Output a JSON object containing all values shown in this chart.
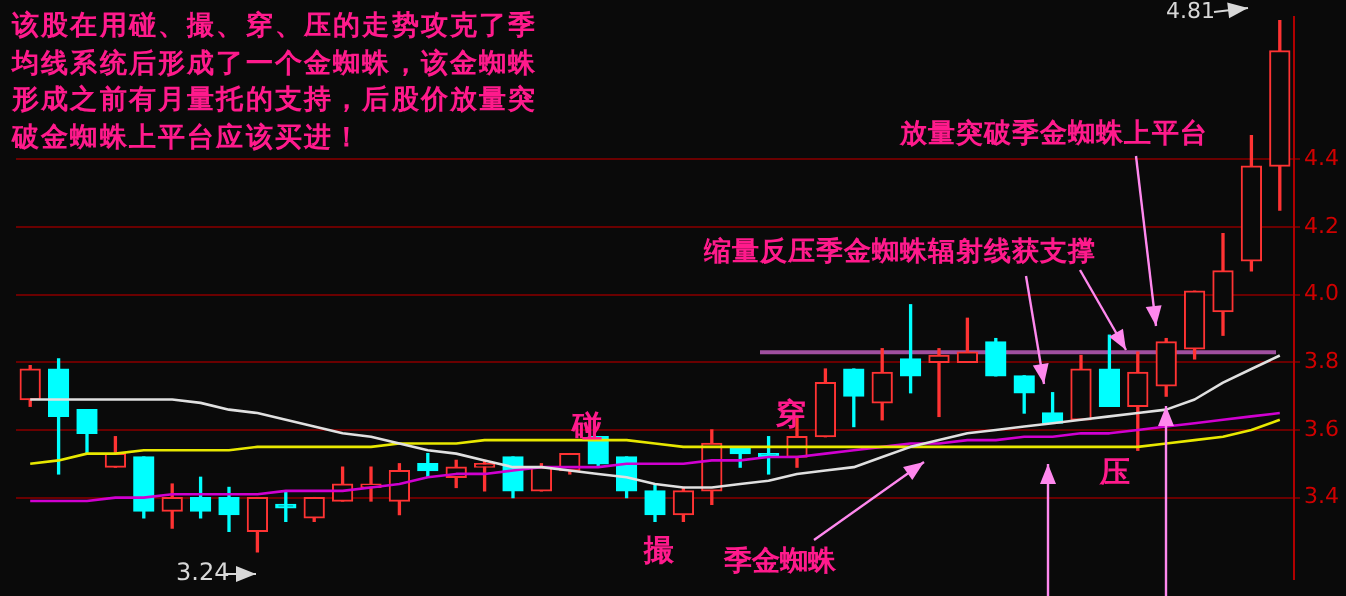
{
  "chart_data": {
    "type": "candlestick",
    "title": "该股在用碰、撮、穿、压的走势攻克了季均线系统后形成了一个金蜘蛛，该金蜘蛛形成之前有月量托的支持，后股价放量突破金蜘蛛上平台应该买进！",
    "annotations": [
      "碰",
      "撮",
      "穿",
      "压",
      "季金蜘蛛",
      "缩量反压季金蜘蛛辐射线获支撑",
      "放量突破季金蜘蛛上平台",
      "3.24",
      "4.81"
    ],
    "categories": [
      null,
      null,
      null,
      null,
      null,
      null,
      null,
      null,
      null,
      null,
      null,
      null,
      null,
      null,
      null,
      null,
      null,
      null,
      null,
      null,
      null,
      null,
      null,
      null,
      null,
      null,
      null,
      null,
      null,
      null,
      null,
      null,
      null,
      null,
      null,
      null,
      null,
      null,
      null,
      null,
      null,
      null,
      null,
      null,
      null
    ],
    "ohlc": [
      [
        3.69,
        3.79,
        3.67,
        3.78
      ],
      [
        3.78,
        3.81,
        3.47,
        3.64
      ],
      [
        3.66,
        3.66,
        3.53,
        3.59
      ],
      [
        3.49,
        3.58,
        3.49,
        3.53
      ],
      [
        3.52,
        3.52,
        3.34,
        3.36
      ],
      [
        3.36,
        3.44,
        3.31,
        3.4
      ],
      [
        3.4,
        3.46,
        3.34,
        3.36
      ],
      [
        3.4,
        3.43,
        3.3,
        3.35
      ],
      [
        3.3,
        3.4,
        3.24,
        3.4
      ],
      [
        3.38,
        3.42,
        3.33,
        3.37
      ],
      [
        3.34,
        3.4,
        3.33,
        3.4
      ],
      [
        3.39,
        3.49,
        3.39,
        3.44
      ],
      [
        3.43,
        3.49,
        3.39,
        3.44
      ],
      [
        3.39,
        3.5,
        3.35,
        3.48
      ],
      [
        3.5,
        3.53,
        3.46,
        3.48
      ],
      [
        3.46,
        3.51,
        3.43,
        3.49
      ],
      [
        3.49,
        3.51,
        3.42,
        3.5
      ],
      [
        3.52,
        3.52,
        3.4,
        3.42
      ],
      [
        3.42,
        3.5,
        3.42,
        3.49
      ],
      [
        3.48,
        3.53,
        3.47,
        3.53
      ],
      [
        3.58,
        3.58,
        3.49,
        3.5
      ],
      [
        3.52,
        3.52,
        3.4,
        3.42
      ],
      [
        3.42,
        3.44,
        3.33,
        3.35
      ],
      [
        3.35,
        3.43,
        3.33,
        3.42
      ],
      [
        3.42,
        3.6,
        3.38,
        3.56
      ],
      [
        3.55,
        3.55,
        3.49,
        3.53
      ],
      [
        3.53,
        3.58,
        3.47,
        3.52
      ],
      [
        3.52,
        3.64,
        3.49,
        3.58
      ],
      [
        3.58,
        3.78,
        3.58,
        3.74
      ],
      [
        3.78,
        3.78,
        3.61,
        3.7
      ],
      [
        3.68,
        3.84,
        3.63,
        3.77
      ],
      [
        3.81,
        3.97,
        3.71,
        3.76
      ],
      [
        3.8,
        3.84,
        3.64,
        3.82
      ],
      [
        3.8,
        3.93,
        3.8,
        3.83
      ],
      [
        3.86,
        3.87,
        3.76,
        3.76
      ],
      [
        3.76,
        3.76,
        3.65,
        3.71
      ],
      [
        3.65,
        3.71,
        3.62,
        3.62
      ],
      [
        3.63,
        3.82,
        3.63,
        3.78
      ],
      [
        3.78,
        3.88,
        3.67,
        3.67
      ],
      [
        3.67,
        3.83,
        3.54,
        3.77
      ],
      [
        3.73,
        3.87,
        3.7,
        3.86
      ],
      [
        3.84,
        4.01,
        3.81,
        4.01
      ],
      [
        3.95,
        4.18,
        3.88,
        4.07
      ],
      [
        4.1,
        4.47,
        4.07,
        4.38
      ],
      [
        4.38,
        4.81,
        4.25,
        4.72
      ]
    ],
    "colors": [
      "#ff3333",
      "#00ffff",
      "#00ffff",
      "#ff3333",
      "#00ffff",
      "#ff3333",
      "#00ffff",
      "#00ffff",
      "#ff3333",
      "#00ffff",
      "#ff3333",
      "#ff3333",
      "#ff3333",
      "#ff3333",
      "#00ffff",
      "#ff3333",
      "#ff3333",
      "#00ffff",
      "#ff3333",
      "#ff3333",
      "#00ffff",
      "#00ffff",
      "#00ffff",
      "#ff3333",
      "#ff3333",
      "#00ffff",
      "#00ffff",
      "#ff3333",
      "#ff3333",
      "#00ffff",
      "#ff3333",
      "#00ffff",
      "#ff3333",
      "#ff3333",
      "#00ffff",
      "#00ffff",
      "#00ffff",
      "#ff3333",
      "#00ffff",
      "#ff3333",
      "#ff3333",
      "#ff3333",
      "#ff3333",
      "#ff3333",
      "#ff3333"
    ],
    "series": [
      {
        "type": "line",
        "color": "#e0e0e0",
        "values": [
          3.69,
          3.69,
          3.69,
          3.69,
          3.69,
          3.69,
          3.68,
          3.66,
          3.65,
          3.63,
          3.61,
          3.59,
          3.58,
          3.56,
          3.54,
          3.53,
          3.51,
          3.49,
          3.49,
          3.48,
          3.47,
          3.46,
          3.44,
          3.43,
          3.43,
          3.44,
          3.45,
          3.47,
          3.48,
          3.49,
          3.52,
          3.55,
          3.57,
          3.59,
          3.6,
          3.61,
          3.62,
          3.63,
          3.64,
          3.65,
          3.66,
          3.69,
          3.74,
          3.78,
          3.82
        ]
      },
      {
        "type": "line",
        "color": "#e8e800",
        "values": [
          3.5,
          3.51,
          3.53,
          3.53,
          3.54,
          3.54,
          3.54,
          3.54,
          3.55,
          3.55,
          3.55,
          3.55,
          3.55,
          3.56,
          3.56,
          3.56,
          3.57,
          3.57,
          3.57,
          3.57,
          3.57,
          3.57,
          3.56,
          3.55,
          3.55,
          3.55,
          3.55,
          3.55,
          3.55,
          3.55,
          3.55,
          3.55,
          3.55,
          3.55,
          3.55,
          3.55,
          3.55,
          3.55,
          3.55,
          3.55,
          3.56,
          3.57,
          3.58,
          3.6,
          3.63
        ]
      },
      {
        "type": "line",
        "color": "#d000d0",
        "values": [
          3.39,
          3.39,
          3.39,
          3.4,
          3.4,
          3.41,
          3.41,
          3.41,
          3.41,
          3.42,
          3.42,
          3.42,
          3.43,
          3.44,
          3.46,
          3.47,
          3.47,
          3.48,
          3.49,
          3.49,
          3.49,
          3.5,
          3.5,
          3.5,
          3.51,
          3.51,
          3.52,
          3.52,
          3.53,
          3.54,
          3.55,
          3.56,
          3.56,
          3.57,
          3.57,
          3.58,
          3.58,
          3.59,
          3.59,
          3.6,
          3.61,
          3.62,
          3.63,
          3.64,
          3.65
        ]
      }
    ],
    "ref_lines": [
      {
        "axis": "y",
        "value": 3.83,
        "color": "#a050a0"
      }
    ],
    "ylim": [
      3.16,
      4.82
    ],
    "yticks": [
      3.4,
      3.6,
      3.8,
      {
        "value": 4,
        "label": "4.0"
      },
      4.2,
      4.4
    ],
    "grid": "y",
    "tick_labels": "y",
    "legend": false
  }
}
